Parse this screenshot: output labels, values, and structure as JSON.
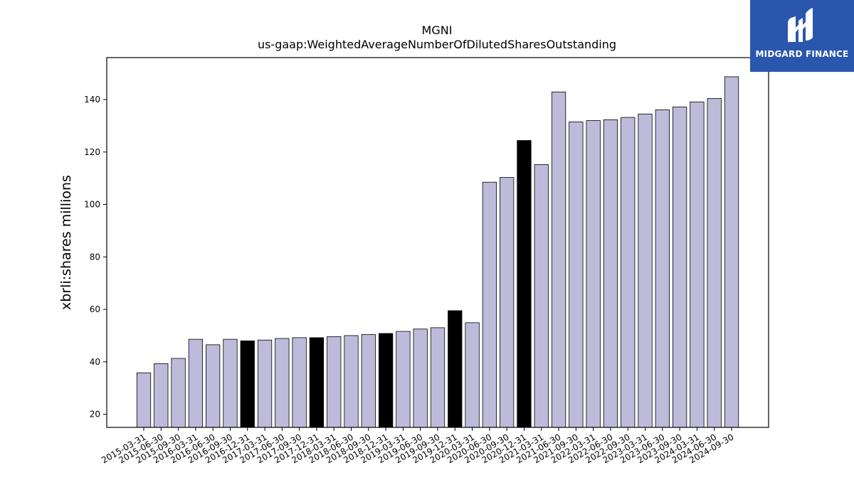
{
  "brand": {
    "name": "MIDGARD FINANCE",
    "background": "#2a57ad",
    "icon": "midgard-logo-icon"
  },
  "chart_data": {
    "type": "bar",
    "title": "MGNI",
    "subtitle": "us-gaap:WeightedAverageNumberOfDilutedSharesOutstanding",
    "xlabel": "",
    "ylabel": "xbrli:shares millions",
    "ylim": [
      15,
      156
    ],
    "yticks": [
      20,
      40,
      60,
      80,
      100,
      120,
      140
    ],
    "grid": false,
    "legend": "none",
    "colors": {
      "quarter": "#bebada",
      "fiscal_year_end": "#000000",
      "edge": "#000000"
    },
    "categories": [
      "2015-03-31",
      "2015-06-30",
      "2015-09-30",
      "2016-03-31",
      "2016-06-30",
      "2016-09-30",
      "2016-12-31",
      "2017-03-31",
      "2017-06-30",
      "2017-09-30",
      "2017-12-31",
      "2018-03-31",
      "2018-06-30",
      "2018-09-30",
      "2018-12-31",
      "2019-03-31",
      "2019-06-30",
      "2019-09-30",
      "2019-12-31",
      "2020-03-31",
      "2020-06-30",
      "2020-09-30",
      "2020-12-31",
      "2021-03-31",
      "2021-06-30",
      "2021-09-30",
      "2022-03-31",
      "2022-06-30",
      "2022-09-30",
      "2023-03-31",
      "2023-06-30",
      "2023-09-30",
      "2024-03-31",
      "2024-06-30",
      "2024-09-30"
    ],
    "values": [
      35.8,
      39.3,
      41.3,
      48.6,
      46.5,
      48.6,
      48.0,
      48.3,
      48.9,
      49.2,
      49.2,
      49.6,
      50.0,
      50.4,
      50.8,
      51.6,
      52.5,
      53.0,
      59.5,
      54.9,
      108.5,
      110.3,
      124.4,
      115.2,
      142.9,
      131.5,
      132.0,
      132.3,
      133.2,
      134.5,
      136.1,
      137.2,
      139.1,
      140.4,
      148.7
    ],
    "highlight": [
      false,
      false,
      false,
      false,
      false,
      false,
      true,
      false,
      false,
      false,
      true,
      false,
      false,
      false,
      true,
      false,
      false,
      false,
      true,
      false,
      false,
      false,
      true,
      false,
      false,
      false,
      false,
      false,
      false,
      false,
      false,
      false,
      false,
      false,
      false
    ]
  }
}
